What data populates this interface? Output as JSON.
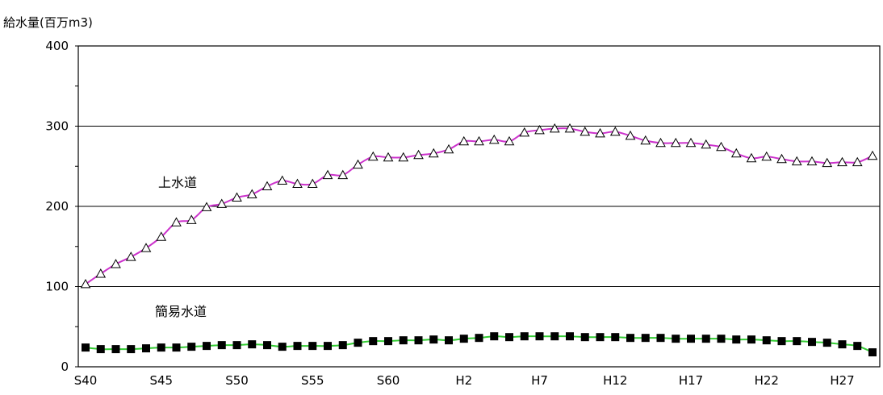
{
  "chart_data": {
    "type": "line",
    "title": "",
    "ylabel": "給水量(百万m3)",
    "xlabel": "",
    "ylim": [
      0,
      400
    ],
    "yticks": [
      0,
      100,
      200,
      300,
      400
    ],
    "grid": true,
    "x_tick_labels": [
      "S40",
      "S45",
      "S50",
      "S55",
      "S60",
      "H2",
      "H7",
      "H12",
      "H17",
      "H22",
      "H27"
    ],
    "x_tick_every": 5,
    "categories": [
      "S40",
      "S41",
      "S42",
      "S43",
      "S44",
      "S45",
      "S46",
      "S47",
      "S48",
      "S49",
      "S50",
      "S51",
      "S52",
      "S53",
      "S54",
      "S55",
      "S56",
      "S57",
      "S58",
      "S59",
      "S60",
      "S61",
      "S62",
      "S63",
      "H1",
      "H2",
      "H3",
      "H4",
      "H5",
      "H6",
      "H7",
      "H8",
      "H9",
      "H10",
      "H11",
      "H12",
      "H13",
      "H14",
      "H15",
      "H16",
      "H17",
      "H18",
      "H19",
      "H20",
      "H21",
      "H22",
      "H23",
      "H24",
      "H25",
      "H26",
      "H27",
      "H28",
      "H29"
    ],
    "series": [
      {
        "name": "上水道",
        "color": "#cc33cc",
        "marker": "triangle-open",
        "values": [
          103,
          116,
          128,
          137,
          148,
          162,
          180,
          183,
          199,
          203,
          211,
          215,
          225,
          232,
          228,
          228,
          239,
          239,
          252,
          262,
          261,
          261,
          264,
          266,
          271,
          281,
          281,
          283,
          281,
          292,
          295,
          297,
          297,
          293,
          291,
          293,
          288,
          282,
          279,
          279,
          279,
          277,
          274,
          266,
          260,
          262,
          259,
          256,
          256,
          254,
          255,
          255,
          263
        ]
      },
      {
        "name": "簡易水道",
        "color": "#33cc33",
        "marker": "square-filled",
        "values": [
          24,
          22,
          22,
          22,
          23,
          24,
          24,
          25,
          26,
          27,
          27,
          28,
          27,
          25,
          26,
          26,
          26,
          27,
          30,
          32,
          32,
          33,
          33,
          34,
          33,
          35,
          36,
          38,
          37,
          38,
          38,
          38,
          38,
          37,
          37,
          37,
          36,
          36,
          36,
          35,
          35,
          35,
          35,
          34,
          34,
          33,
          32,
          32,
          31,
          30,
          28,
          26,
          18
        ]
      }
    ]
  }
}
